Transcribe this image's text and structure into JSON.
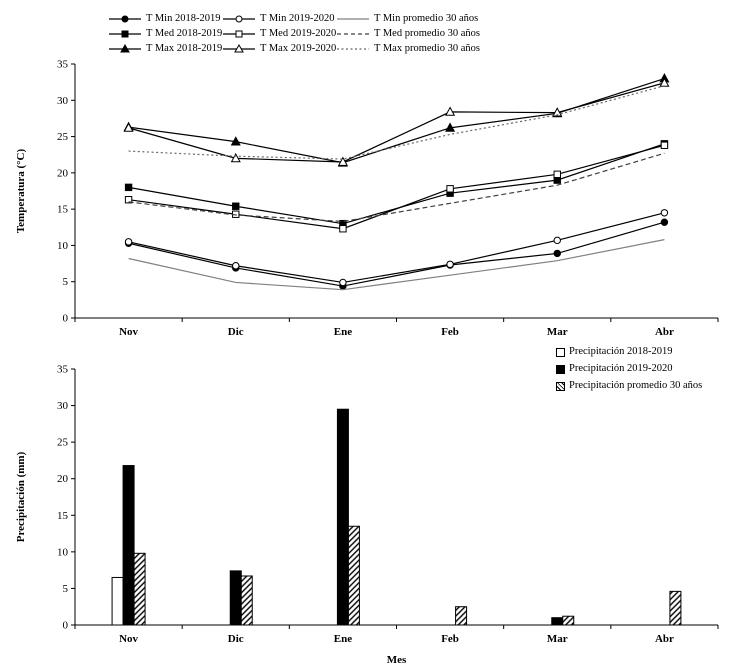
{
  "figure": {
    "background": "#ffffff"
  },
  "chart_data": [
    {
      "type": "line",
      "title": "",
      "categories": [
        "Nov",
        "Dic",
        "Ene",
        "Feb",
        "Mar",
        "Abr"
      ],
      "xlabel": "",
      "ylabel": "Temperatura (°C)",
      "ylim": [
        0,
        35
      ],
      "ytick_step": 5,
      "grid": false,
      "legend_position": "top",
      "series": [
        {
          "name": "T Min 2018-2019",
          "marker": "circle-filled",
          "dash": "solid",
          "color": "#000000",
          "values": [
            10.3,
            6.9,
            4.4,
            7.3,
            8.9,
            13.2
          ]
        },
        {
          "name": "T Min 2019-2020",
          "marker": "circle-open",
          "dash": "solid",
          "color": "#000000",
          "values": [
            10.5,
            7.2,
            4.9,
            7.4,
            10.7,
            14.5
          ]
        },
        {
          "name": "T Min promedio 30 años",
          "marker": "none",
          "dash": "solid",
          "color": "#808080",
          "values": [
            8.2,
            4.9,
            3.9,
            5.9,
            7.9,
            10.8
          ]
        },
        {
          "name": "T Med 2018-2019",
          "marker": "square-filled",
          "dash": "solid",
          "color": "#000000",
          "values": [
            18.0,
            15.4,
            13.0,
            17.2,
            19.0,
            24.0
          ]
        },
        {
          "name": "T Med 2019-2020",
          "marker": "square-open",
          "dash": "solid",
          "color": "#000000",
          "values": [
            16.3,
            14.3,
            12.3,
            17.8,
            19.8,
            23.8
          ]
        },
        {
          "name": "T Med promedio 30 años",
          "marker": "none",
          "dash": "dashed",
          "color": "#404040",
          "values": [
            16.0,
            14.2,
            13.3,
            15.8,
            18.3,
            22.7
          ]
        },
        {
          "name": "T Max 2018-2019",
          "marker": "triangle-filled",
          "dash": "solid",
          "color": "#000000",
          "values": [
            26.3,
            24.3,
            21.4,
            26.2,
            28.2,
            33.0
          ]
        },
        {
          "name": "T Max 2019-2020",
          "marker": "triangle-open",
          "dash": "solid",
          "color": "#000000",
          "values": [
            26.2,
            22.0,
            21.5,
            28.4,
            28.3,
            32.4
          ]
        },
        {
          "name": "T Max promedio 30 años",
          "marker": "none",
          "dash": "dotted",
          "color": "#666666",
          "values": [
            23.0,
            22.3,
            21.9,
            25.3,
            28.0,
            32.0
          ]
        }
      ]
    },
    {
      "type": "bar",
      "title": "",
      "categories": [
        "Nov",
        "Dic",
        "Ene",
        "Feb",
        "Mar",
        "Abr"
      ],
      "xlabel": "Mes",
      "ylabel": "Precipitación (mm)",
      "ylim": [
        0,
        35
      ],
      "ytick_step": 5,
      "grid": false,
      "legend_position": "top-right",
      "series": [
        {
          "name": "Precipitación 2018-2019",
          "fill": "white",
          "values": [
            6.5,
            0,
            0,
            0,
            0,
            0
          ]
        },
        {
          "name": "Precipitación 2019-2020",
          "fill": "black",
          "values": [
            21.8,
            7.4,
            29.5,
            0,
            1.0,
            0
          ]
        },
        {
          "name": "Precipitación promedio 30 años",
          "fill": "hatch",
          "values": [
            9.8,
            6.7,
            13.5,
            2.5,
            1.2,
            4.6
          ]
        }
      ]
    }
  ]
}
